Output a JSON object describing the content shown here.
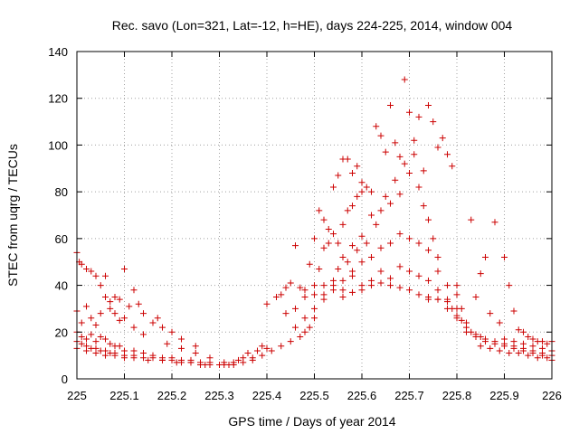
{
  "chart_data": {
    "type": "scatter",
    "title": "Rec. savo (Lon=321, Lat=-12, h=HE), days 224-225, 2014, window 004",
    "xlabel": "GPS time / Days of year 2014",
    "ylabel": "STEC from uqrg / TECUs",
    "xlim": [
      225,
      226
    ],
    "ylim": [
      0,
      140
    ],
    "xticks": [
      225,
      225.1,
      225.2,
      225.3,
      225.4,
      225.5,
      225.6,
      225.7,
      225.8,
      225.9,
      226
    ],
    "xtick_labels": [
      "225",
      "225.1",
      "225.2",
      "225.3",
      "225.4",
      "225.5",
      "225.6",
      "225.7",
      "225.8",
      "225.9",
      "226"
    ],
    "yticks": [
      0,
      20,
      40,
      60,
      80,
      100,
      120,
      140
    ],
    "ytick_labels": [
      "0",
      "20",
      "40",
      "60",
      "80",
      "100",
      "120",
      "140"
    ],
    "grid": true,
    "marker": "plus",
    "color": "#cc0000",
    "series": [
      {
        "points": [
          [
            225.0,
            54
          ],
          [
            225.005,
            50
          ],
          [
            225.01,
            49
          ],
          [
            225.02,
            47
          ],
          [
            225.03,
            46
          ],
          [
            225.04,
            44
          ],
          [
            225.05,
            40
          ],
          [
            225.06,
            44
          ],
          [
            225.07,
            33
          ],
          [
            225.08,
            35
          ],
          [
            225.09,
            34
          ],
          [
            225.1,
            47
          ],
          [
            225.11,
            31
          ],
          [
            225.12,
            38
          ],
          [
            225.13,
            32
          ],
          [
            225.14,
            28
          ],
          [
            225.16,
            24
          ],
          [
            225.18,
            22
          ],
          [
            225.2,
            20
          ],
          [
            225.22,
            17
          ],
          [
            225.25,
            14
          ],
          [
            225.0,
            29
          ],
          [
            225.01,
            24
          ],
          [
            225.02,
            31
          ],
          [
            225.03,
            26
          ],
          [
            225.04,
            23
          ],
          [
            225.05,
            28
          ],
          [
            225.06,
            35
          ],
          [
            225.07,
            30
          ],
          [
            225.08,
            28
          ],
          [
            225.09,
            25
          ],
          [
            225.1,
            26
          ],
          [
            225.12,
            22
          ],
          [
            225.14,
            19
          ],
          [
            225.17,
            26
          ],
          [
            225.19,
            15
          ],
          [
            225.22,
            13
          ],
          [
            225.25,
            11
          ],
          [
            225.28,
            9
          ],
          [
            225.0,
            20
          ],
          [
            225.01,
            18
          ],
          [
            225.02,
            17
          ],
          [
            225.03,
            19
          ],
          [
            225.04,
            16
          ],
          [
            225.05,
            18
          ],
          [
            225.06,
            17
          ],
          [
            225.07,
            15
          ],
          [
            225.08,
            14
          ],
          [
            225.09,
            14
          ],
          [
            225.1,
            12
          ],
          [
            225.12,
            12
          ],
          [
            225.14,
            11
          ],
          [
            225.16,
            10
          ],
          [
            225.18,
            9
          ],
          [
            225.2,
            9
          ],
          [
            225.22,
            8
          ],
          [
            225.24,
            8
          ],
          [
            225.26,
            7
          ],
          [
            225.28,
            7
          ],
          [
            225.3,
            6
          ],
          [
            225.0,
            16
          ],
          [
            225.01,
            15
          ],
          [
            225.02,
            14
          ],
          [
            225.03,
            13
          ],
          [
            225.04,
            13
          ],
          [
            225.05,
            12
          ],
          [
            225.06,
            12
          ],
          [
            225.07,
            11
          ],
          [
            225.08,
            11
          ],
          [
            225.1,
            10
          ],
          [
            225.12,
            10
          ],
          [
            225.14,
            9
          ],
          [
            225.16,
            9
          ],
          [
            225.18,
            8
          ],
          [
            225.2,
            8
          ],
          [
            225.22,
            7
          ],
          [
            225.24,
            7
          ],
          [
            225.26,
            6
          ],
          [
            225.28,
            6
          ],
          [
            225.3,
            6
          ],
          [
            225.0,
            13
          ],
          [
            225.02,
            12
          ],
          [
            225.04,
            11
          ],
          [
            225.06,
            10
          ],
          [
            225.08,
            10
          ],
          [
            225.1,
            9
          ],
          [
            225.12,
            9
          ],
          [
            225.15,
            8
          ],
          [
            225.18,
            8
          ],
          [
            225.21,
            7
          ],
          [
            225.24,
            7
          ],
          [
            225.27,
            6
          ],
          [
            225.3,
            6
          ],
          [
            225.31,
            7
          ],
          [
            225.32,
            6
          ],
          [
            225.33,
            7
          ],
          [
            225.34,
            8
          ],
          [
            225.35,
            9
          ],
          [
            225.36,
            11
          ],
          [
            225.37,
            8
          ],
          [
            225.38,
            12
          ],
          [
            225.39,
            14
          ],
          [
            225.4,
            13
          ],
          [
            225.31,
            6
          ],
          [
            225.33,
            6
          ],
          [
            225.35,
            7
          ],
          [
            225.37,
            9
          ],
          [
            225.39,
            10
          ],
          [
            225.41,
            12
          ],
          [
            225.43,
            14
          ],
          [
            225.45,
            16
          ],
          [
            225.47,
            18
          ],
          [
            225.49,
            22
          ],
          [
            225.4,
            32
          ],
          [
            225.42,
            35
          ],
          [
            225.43,
            36
          ],
          [
            225.44,
            39
          ],
          [
            225.45,
            41
          ],
          [
            225.46,
            57
          ],
          [
            225.47,
            39
          ],
          [
            225.48,
            38
          ],
          [
            225.49,
            49
          ],
          [
            225.5,
            60
          ],
          [
            225.51,
            72
          ],
          [
            225.52,
            68
          ],
          [
            225.53,
            64
          ],
          [
            225.54,
            82
          ],
          [
            225.55,
            87
          ],
          [
            225.56,
            94
          ],
          [
            225.57,
            94
          ],
          [
            225.58,
            88
          ],
          [
            225.59,
            91
          ],
          [
            225.6,
            84
          ],
          [
            225.44,
            28
          ],
          [
            225.46,
            30
          ],
          [
            225.48,
            35
          ],
          [
            225.5,
            40
          ],
          [
            225.51,
            47
          ],
          [
            225.52,
            56
          ],
          [
            225.53,
            58
          ],
          [
            225.54,
            62
          ],
          [
            225.55,
            58
          ],
          [
            225.56,
            66
          ],
          [
            225.57,
            72
          ],
          [
            225.58,
            74
          ],
          [
            225.59,
            78
          ],
          [
            225.6,
            80
          ],
          [
            225.61,
            82
          ],
          [
            225.62,
            80
          ],
          [
            225.63,
            108
          ],
          [
            225.64,
            104
          ],
          [
            225.65,
            97
          ],
          [
            225.66,
            117
          ],
          [
            225.67,
            101
          ],
          [
            225.68,
            95
          ],
          [
            225.69,
            128
          ],
          [
            225.7,
            114
          ],
          [
            225.71,
            102
          ],
          [
            225.72,
            112
          ],
          [
            225.73,
            89
          ],
          [
            225.74,
            117
          ],
          [
            225.75,
            110
          ],
          [
            225.76,
            99
          ],
          [
            225.77,
            103
          ],
          [
            225.78,
            96
          ],
          [
            225.79,
            91
          ],
          [
            225.46,
            22
          ],
          [
            225.48,
            26
          ],
          [
            225.5,
            30
          ],
          [
            225.52,
            36
          ],
          [
            225.54,
            40
          ],
          [
            225.55,
            47
          ],
          [
            225.56,
            52
          ],
          [
            225.57,
            50
          ],
          [
            225.58,
            57
          ],
          [
            225.59,
            55
          ],
          [
            225.6,
            61
          ],
          [
            225.61,
            58
          ],
          [
            225.62,
            70
          ],
          [
            225.63,
            66
          ],
          [
            225.64,
            72
          ],
          [
            225.65,
            78
          ],
          [
            225.66,
            75
          ],
          [
            225.67,
            85
          ],
          [
            225.68,
            79
          ],
          [
            225.69,
            92
          ],
          [
            225.7,
            88
          ],
          [
            225.71,
            96
          ],
          [
            225.72,
            82
          ],
          [
            225.73,
            74
          ],
          [
            225.74,
            68
          ],
          [
            225.75,
            60
          ],
          [
            225.76,
            52
          ],
          [
            225.48,
            20
          ],
          [
            225.5,
            26
          ],
          [
            225.52,
            34
          ],
          [
            225.54,
            38
          ],
          [
            225.56,
            42
          ],
          [
            225.58,
            46
          ],
          [
            225.6,
            50
          ],
          [
            225.62,
            52
          ],
          [
            225.64,
            56
          ],
          [
            225.66,
            58
          ],
          [
            225.68,
            62
          ],
          [
            225.7,
            60
          ],
          [
            225.72,
            58
          ],
          [
            225.74,
            55
          ],
          [
            225.76,
            46
          ],
          [
            225.78,
            40
          ],
          [
            225.8,
            36
          ],
          [
            225.5,
            36
          ],
          [
            225.52,
            40
          ],
          [
            225.54,
            42
          ],
          [
            225.56,
            38
          ],
          [
            225.58,
            44
          ],
          [
            225.6,
            40
          ],
          [
            225.62,
            42
          ],
          [
            225.64,
            46
          ],
          [
            225.66,
            43
          ],
          [
            225.68,
            48
          ],
          [
            225.7,
            46
          ],
          [
            225.72,
            44
          ],
          [
            225.74,
            42
          ],
          [
            225.76,
            38
          ],
          [
            225.78,
            34
          ],
          [
            225.8,
            30
          ],
          [
            225.56,
            35
          ],
          [
            225.58,
            37
          ],
          [
            225.6,
            38
          ],
          [
            225.62,
            40
          ],
          [
            225.64,
            41
          ],
          [
            225.66,
            40
          ],
          [
            225.68,
            39
          ],
          [
            225.7,
            38
          ],
          [
            225.72,
            36
          ],
          [
            225.74,
            35
          ],
          [
            225.76,
            34
          ],
          [
            225.78,
            30
          ],
          [
            225.8,
            27
          ],
          [
            225.82,
            24
          ],
          [
            225.74,
            34
          ],
          [
            225.76,
            34
          ],
          [
            225.78,
            33
          ],
          [
            225.79,
            30
          ],
          [
            225.8,
            26
          ],
          [
            225.81,
            25
          ],
          [
            225.82,
            22
          ],
          [
            225.83,
            20
          ],
          [
            225.84,
            19
          ],
          [
            225.85,
            18
          ],
          [
            225.86,
            17
          ],
          [
            225.88,
            16
          ],
          [
            225.9,
            15
          ],
          [
            225.92,
            14
          ],
          [
            225.94,
            13
          ],
          [
            225.96,
            12
          ],
          [
            225.98,
            11
          ],
          [
            225.8,
            40
          ],
          [
            225.81,
            30
          ],
          [
            225.83,
            68
          ],
          [
            225.84,
            35
          ],
          [
            225.85,
            45
          ],
          [
            225.86,
            52
          ],
          [
            225.87,
            28
          ],
          [
            225.88,
            67
          ],
          [
            225.89,
            24
          ],
          [
            225.9,
            52
          ],
          [
            225.91,
            40
          ],
          [
            225.92,
            29
          ],
          [
            225.93,
            21
          ],
          [
            225.94,
            20
          ],
          [
            225.95,
            18
          ],
          [
            225.96,
            17
          ],
          [
            225.97,
            16
          ],
          [
            225.98,
            16
          ],
          [
            225.99,
            15
          ],
          [
            226.0,
            16
          ],
          [
            225.82,
            20
          ],
          [
            225.84,
            18
          ],
          [
            225.86,
            16
          ],
          [
            225.88,
            15
          ],
          [
            225.9,
            14
          ],
          [
            225.92,
            13
          ],
          [
            225.94,
            12
          ],
          [
            225.96,
            11
          ],
          [
            225.98,
            10
          ],
          [
            226.0,
            10
          ],
          [
            225.85,
            14
          ],
          [
            225.87,
            13
          ],
          [
            225.89,
            12
          ],
          [
            225.91,
            11
          ],
          [
            225.93,
            11
          ],
          [
            225.95,
            10
          ],
          [
            225.97,
            9
          ],
          [
            225.99,
            9
          ],
          [
            226.0,
            8
          ],
          [
            225.9,
            17
          ],
          [
            225.92,
            16
          ],
          [
            225.94,
            15
          ],
          [
            225.96,
            14
          ],
          [
            225.98,
            13
          ],
          [
            226.0,
            12
          ]
        ]
      }
    ]
  }
}
